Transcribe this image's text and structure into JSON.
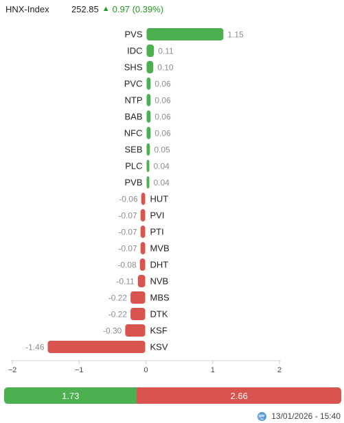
{
  "header": {
    "index_name": "HNX-Index",
    "index_value": "252.85",
    "change": "0.97 (0.39%)",
    "direction_icon": "triangle-up-icon"
  },
  "chart_data": {
    "type": "bar",
    "orientation": "horizontal",
    "categories": [
      "PVS",
      "IDC",
      "SHS",
      "PVC",
      "NTP",
      "BAB",
      "NFC",
      "SEB",
      "PLC",
      "PVB",
      "HUT",
      "PVI",
      "PTI",
      "MVB",
      "DHT",
      "NVB",
      "MBS",
      "DTK",
      "KSF",
      "KSV"
    ],
    "values": [
      1.15,
      0.11,
      0.1,
      0.06,
      0.06,
      0.06,
      0.06,
      0.05,
      0.04,
      0.04,
      -0.06,
      -0.07,
      -0.07,
      -0.07,
      -0.08,
      -0.11,
      -0.22,
      -0.22,
      -0.3,
      -1.46
    ],
    "value_labels": [
      "1.15",
      "0.11",
      "0.10",
      "0.06",
      "0.06",
      "0.06",
      "0.06",
      "0.05",
      "0.04",
      "0.04",
      "-0.06",
      "-0.07",
      "-0.07",
      "-0.07",
      "-0.08",
      "-0.11",
      "-0.22",
      "-0.22",
      "-0.30",
      "-1.46"
    ],
    "xlim": [
      -2,
      2
    ],
    "xticks": [
      -2,
      -1,
      0,
      1,
      2
    ],
    "xtick_labels": [
      "−2",
      "−1",
      "0",
      "1",
      "2"
    ],
    "colors": {
      "positive": "#4caf50",
      "negative": "#d9534f"
    },
    "grid": false,
    "legend": "none"
  },
  "summary": {
    "positive_total": 1.73,
    "negative_total": 2.66,
    "positive_label": "1.73",
    "negative_label": "2.66"
  },
  "footer": {
    "timestamp": "13/01/2026 - 15:40",
    "icon": "globe-icon"
  }
}
